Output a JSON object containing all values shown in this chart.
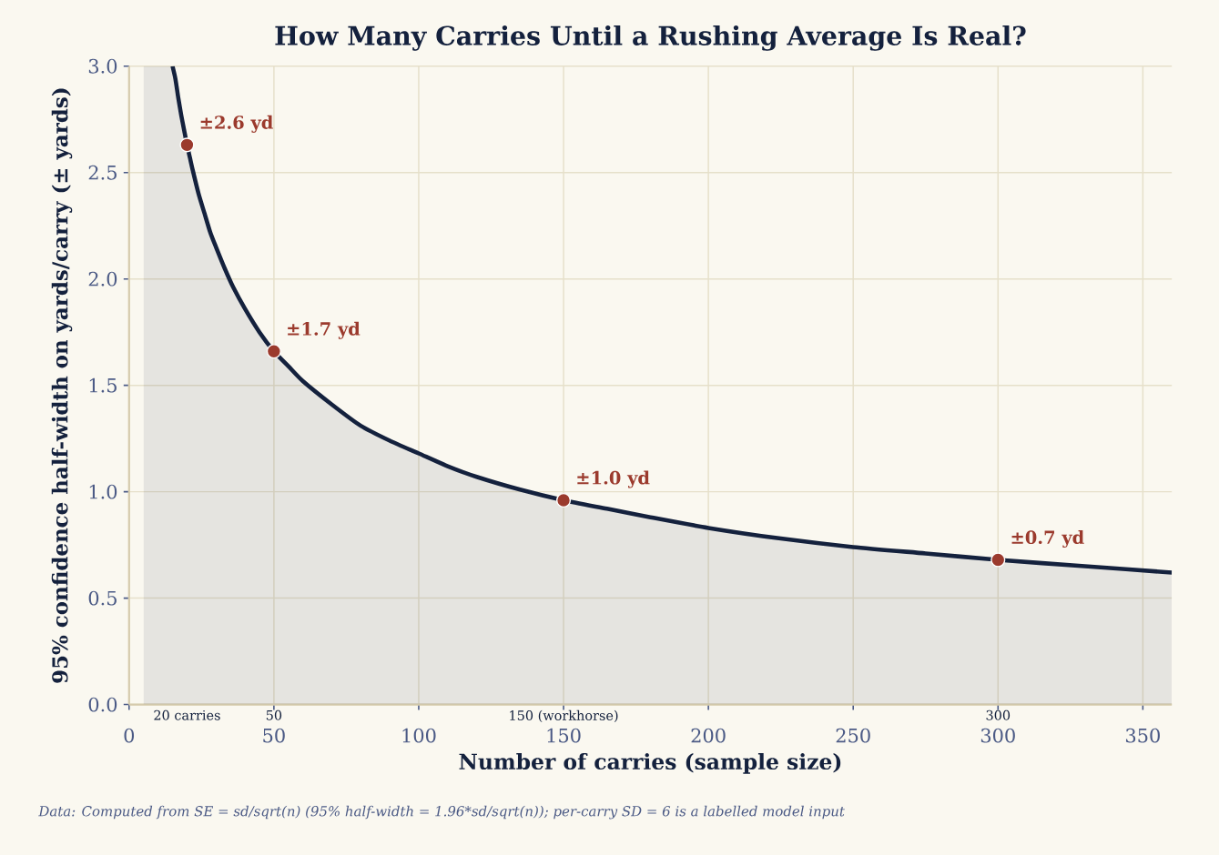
{
  "chart_data": {
    "type": "area",
    "title": "How Many Carries Until a Rushing Average Is Real?",
    "xlabel": "Number of carries (sample size)",
    "ylabel": "95% confidence half-width on yards/carry (± yards)",
    "xlim": [
      0,
      360
    ],
    "ylim": [
      0,
      3.0
    ],
    "xticks": [
      0,
      50,
      100,
      150,
      200,
      250,
      300,
      350
    ],
    "yticks": [
      {
        "value": 0,
        "label": "0.0"
      },
      0.5,
      {
        "value": 1,
        "label": "1.0"
      },
      1.5,
      {
        "value": 2,
        "label": "2.0"
      },
      2.5,
      {
        "value": 3,
        "label": "3.0"
      }
    ],
    "grid": true,
    "series": [
      {
        "color": "#14213d",
        "x": [
          5,
          15,
          16,
          17,
          18,
          19,
          20,
          21,
          22,
          24,
          26,
          28,
          30,
          33,
          36,
          40,
          45,
          50,
          55,
          60,
          70,
          80,
          90,
          100,
          110,
          120,
          135,
          150,
          165,
          180,
          200,
          225,
          250,
          275,
          300,
          330,
          360
        ],
        "values": [
          3.0,
          3.0,
          2.94,
          2.85,
          2.77,
          2.7,
          2.63,
          2.57,
          2.51,
          2.4,
          2.31,
          2.22,
          2.15,
          2.05,
          1.96,
          1.86,
          1.75,
          1.66,
          1.59,
          1.52,
          1.41,
          1.31,
          1.24,
          1.18,
          1.12,
          1.07,
          1.01,
          0.96,
          0.92,
          0.88,
          0.83,
          0.78,
          0.74,
          0.71,
          0.68,
          0.65,
          0.62
        ]
      },
      {
        "type": "scatter",
        "color": "#9b3a2d",
        "marker": "circle",
        "x": [
          20,
          50,
          150,
          300
        ],
        "values": [
          2.63,
          1.66,
          0.96,
          0.68
        ],
        "value_labels": [
          "±2.6 yd",
          "±1.7 yd",
          "±1.0 yd",
          "±0.7 yd"
        ]
      }
    ],
    "annotations": [
      {
        "text": "20 carries",
        "x": 20,
        "y": 0
      },
      {
        "text": "50",
        "x": 50,
        "y": 0
      },
      {
        "text": "150 (workhorse)",
        "x": 150,
        "y": 0
      },
      {
        "text": "300",
        "x": 300,
        "y": 0
      },
      "Data: Computed from SE = sd/sqrt(n) (95% half-width = 1.96*sd/sqrt(n)); per-carry SD = 6 is a labelled model input"
    ]
  }
}
